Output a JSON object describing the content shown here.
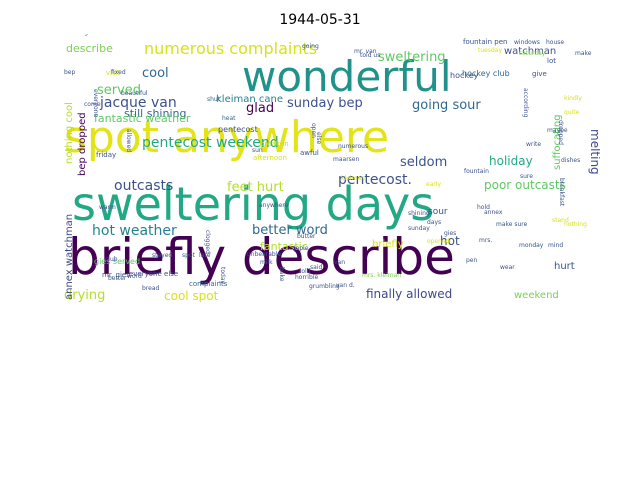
{
  "title": "1944-05-31",
  "palette": [
    "#440154",
    "#3b528b",
    "#21918c",
    "#5ec962",
    "#fde725"
  ],
  "words": [
    {
      "text": "briefly describe",
      "c": "#440154"
    },
    {
      "text": "sweltering days",
      "c": "#22a884"
    },
    {
      "text": "spot anywhere",
      "c": "#e3e418"
    },
    {
      "text": "wonderful",
      "c": "#21918c"
    },
    {
      "text": "numerous complaints",
      "c": "#d8e219"
    },
    {
      "text": "sweltering",
      "c": "#5ec962"
    },
    {
      "text": "jacque van",
      "c": "#3b528b"
    },
    {
      "text": "cool",
      "c": "#31688e"
    },
    {
      "text": "served",
      "c": "#5ec962"
    },
    {
      "text": "describe",
      "c": "#7ad151"
    },
    {
      "text": "still shining",
      "c": "#31688e"
    },
    {
      "text": "fantastic weather",
      "c": "#5ec962"
    },
    {
      "text": "kleiman cane",
      "c": "#26828e"
    },
    {
      "text": "glad",
      "c": "#440154"
    },
    {
      "text": "sunday bep",
      "c": "#3b528b"
    },
    {
      "text": "going sour",
      "c": "#31688e"
    },
    {
      "text": "pentecost weekend",
      "c": "#22a884"
    },
    {
      "text": "seldom",
      "c": "#3b528b"
    },
    {
      "text": "holiday",
      "c": "#22a884"
    },
    {
      "text": "melting",
      "c": "#3e4989"
    },
    {
      "text": "pentecost.",
      "c": "#3b528b"
    },
    {
      "text": "outcasts",
      "c": "#3b528b"
    },
    {
      "text": "feet hurt",
      "c": "#b5de2b"
    },
    {
      "text": "poor outcasts",
      "c": "#5ec962"
    },
    {
      "text": "hot weather",
      "c": "#26828e"
    },
    {
      "text": "better word",
      "c": "#31688e"
    },
    {
      "text": "fantastic",
      "c": "#b5de2b"
    },
    {
      "text": "hot",
      "c": "#3b528b"
    },
    {
      "text": "briefly",
      "c": "#d8e219"
    },
    {
      "text": "drying",
      "c": "#b5de2b"
    },
    {
      "text": "cool spot",
      "c": "#d8e219"
    },
    {
      "text": "finally allowed",
      "c": "#3e4989"
    },
    {
      "text": "weekend",
      "c": "#7ad151"
    },
    {
      "text": "annex watchman",
      "c": "#3e4989"
    },
    {
      "text": "nothing cool",
      "c": "#b5de2b"
    },
    {
      "text": "bep dropped",
      "c": "#440154"
    },
    {
      "text": "suffocating",
      "c": "#5ec962"
    },
    {
      "text": "watchman",
      "c": "#3b528b"
    },
    {
      "text": "hockey club",
      "c": "#31688e"
    },
    {
      "text": "gies served",
      "c": "#5ec962"
    },
    {
      "text": "hurt",
      "c": "#3b528b"
    },
    {
      "text": "pentecost",
      "c": "#3b528b"
    },
    {
      "text": "hockey",
      "c": "#3b528b"
    },
    {
      "text": "mr. gies",
      "c": "#3b528b"
    },
    {
      "text": "everyone else",
      "c": "#3e4989"
    },
    {
      "text": "sour",
      "c": "#3b528b"
    },
    {
      "text": "complaints",
      "c": "#31688e"
    },
    {
      "text": "break-in",
      "c": "#b5de2b"
    },
    {
      "text": "fountain pen",
      "c": "#3b528b"
    },
    {
      "text": "windows",
      "c": "#3b528b"
    },
    {
      "text": "house",
      "c": "#3b528b"
    },
    {
      "text": "saturday",
      "c": "#7ad151"
    },
    {
      "text": "make",
      "c": "#3b528b"
    },
    {
      "text": "friday",
      "c": "#3b528b"
    },
    {
      "text": "afternoon",
      "c": "#d8e219"
    },
    {
      "text": "awful",
      "c": "#3b528b"
    },
    {
      "text": "heat",
      "c": "#31688e"
    },
    {
      "text": "shut",
      "c": "#31688e"
    },
    {
      "text": "give",
      "c": "#3b528b"
    },
    {
      "text": "visit",
      "c": "#d8e219"
    },
    {
      "text": "lot",
      "c": "#3b528b"
    },
    {
      "text": "fountain",
      "c": "#3b528b"
    },
    {
      "text": "opened",
      "c": "#d8e219"
    },
    {
      "text": "days",
      "c": "#3b528b"
    },
    {
      "text": "maarsen",
      "c": "#3b528b"
    },
    {
      "text": "shining",
      "c": "#3b528b"
    },
    {
      "text": "sunday",
      "c": "#3b528b"
    },
    {
      "text": "make sure",
      "c": "#3b528b"
    },
    {
      "text": "stand",
      "c": "#d8e219"
    },
    {
      "text": "monday",
      "c": "#3b528b"
    },
    {
      "text": "mind",
      "c": "#3b528b"
    },
    {
      "text": "nothing",
      "c": "#d8e219"
    },
    {
      "text": "butter",
      "c": "#3b528b"
    },
    {
      "text": "jopie",
      "c": "#3b528b"
    },
    {
      "text": "van",
      "c": "#3b528b"
    },
    {
      "text": "told",
      "c": "#3b528b"
    },
    {
      "text": "said",
      "c": "#3b528b"
    },
    {
      "text": "horrible",
      "c": "#3b528b"
    },
    {
      "text": "grumbling",
      "c": "#3b528b"
    },
    {
      "text": "van d.",
      "c": "#3b528b"
    },
    {
      "text": "mrs. kleiman",
      "c": "#7ad151"
    },
    {
      "text": "kleiman",
      "c": "#d8e219"
    },
    {
      "text": "early",
      "c": "#d8e219"
    },
    {
      "text": "clogged",
      "c": "#3b528b"
    },
    {
      "text": "stayed",
      "c": "#3b528b"
    },
    {
      "text": "spot",
      "c": "#3b528b"
    },
    {
      "text": "late",
      "c": "#3b528b"
    },
    {
      "text": "bread",
      "c": "#3b528b"
    },
    {
      "text": "club",
      "c": "#3b528b"
    },
    {
      "text": "unbearable",
      "c": "#3b528b"
    },
    {
      "text": "sun",
      "c": "#3b528b"
    },
    {
      "text": "beautiful",
      "c": "#3b528b"
    },
    {
      "text": "mr. van",
      "c": "#3b528b"
    },
    {
      "text": "tuesday",
      "c": "#d8e219"
    },
    {
      "text": "according",
      "c": "#3b528b"
    },
    {
      "text": "dropped",
      "c": "#3b528b"
    },
    {
      "text": "maybe",
      "c": "#3b528b"
    },
    {
      "text": "write",
      "c": "#3b528b"
    },
    {
      "text": "dishes",
      "c": "#3b528b"
    },
    {
      "text": "annex",
      "c": "#3b528b"
    },
    {
      "text": "sure",
      "c": "#3b528b"
    },
    {
      "text": "quite",
      "c": "#d8e219"
    },
    {
      "text": "bep",
      "c": "#3b528b"
    },
    {
      "text": "told us",
      "c": "#3b528b"
    },
    {
      "text": "come",
      "c": "#3b528b"
    },
    {
      "text": "fixed",
      "c": "#3b528b"
    },
    {
      "text": "going",
      "c": "#3b528b"
    },
    {
      "text": "anywhere",
      "c": "#3b528b"
    },
    {
      "text": "else",
      "c": "#3b528b"
    },
    {
      "text": "warm",
      "c": "#3b528b"
    },
    {
      "text": "word",
      "c": "#3b528b"
    },
    {
      "text": "better",
      "c": "#3b528b"
    },
    {
      "text": "today",
      "c": "#3b528b"
    },
    {
      "text": "bake",
      "c": "#3b528b"
    },
    {
      "text": "milk",
      "c": "#3b528b"
    },
    {
      "text": "mrs.",
      "c": "#3b528b"
    },
    {
      "text": "gies",
      "c": "#3b528b"
    },
    {
      "text": "numerous",
      "c": "#3b528b"
    },
    {
      "text": "wear",
      "c": "#3b528b"
    },
    {
      "text": "pen",
      "c": "#3b528b"
    },
    {
      "text": "open",
      "c": "#3b528b"
    },
    {
      "text": "everyone",
      "c": "#3b528b"
    },
    {
      "text": "kindly",
      "c": "#d8e219"
    },
    {
      "text": "hold",
      "c": "#3b528b"
    },
    {
      "text": "allowed",
      "c": "#3b528b"
    },
    {
      "text": "breakfast",
      "c": "#3b528b"
    },
    {
      "text": "warning",
      "c": "#3b528b"
    }
  ]
}
